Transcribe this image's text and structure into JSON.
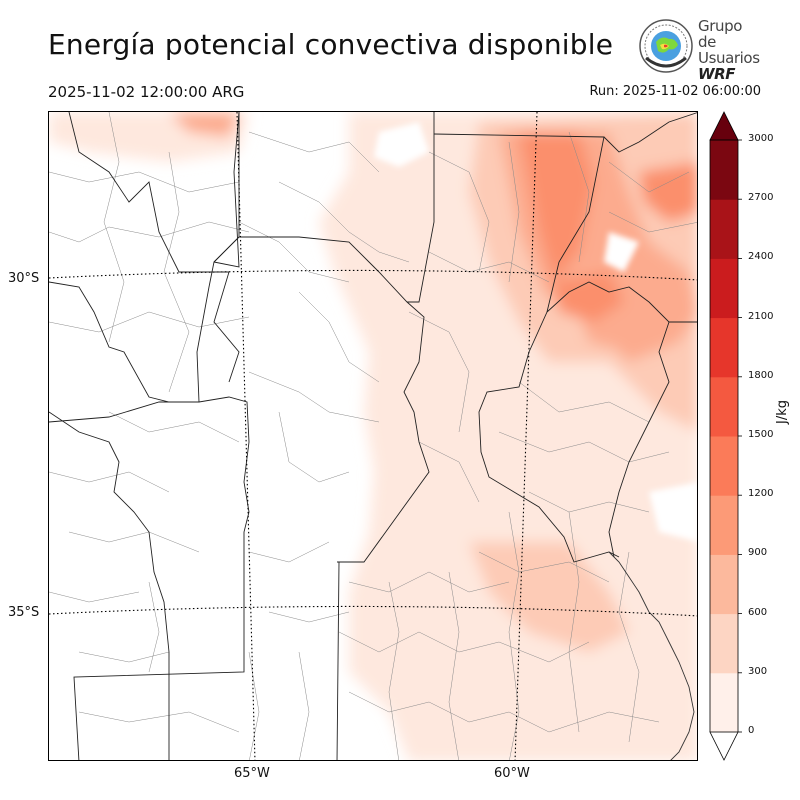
{
  "title": "Energía potencial convectiva disponible",
  "valid_time": "2025-11-02 12:00:00 ARG",
  "run_time": "Run: 2025-11-02 06:00:00",
  "logo": {
    "line1": "Grupo de",
    "line2": "Usuarios",
    "line3": "WRF"
  },
  "map": {
    "lat_labels": [
      "30°S",
      "35°S"
    ],
    "lon_labels": [
      "65°W",
      "60°W"
    ]
  },
  "colorbar": {
    "unit": "J/kg",
    "ticks": [
      "0",
      "300",
      "600",
      "900",
      "1200",
      "1500",
      "1800",
      "2100",
      "2400",
      "2700",
      "3000"
    ],
    "colors": [
      "#fff0ea",
      "#fdd5c3",
      "#fcb99d",
      "#fc9a77",
      "#fb7b59",
      "#f45940",
      "#e6362b",
      "#cb1c1e",
      "#a91318",
      "#7b0711",
      "#67000d"
    ],
    "extend": "both"
  }
}
